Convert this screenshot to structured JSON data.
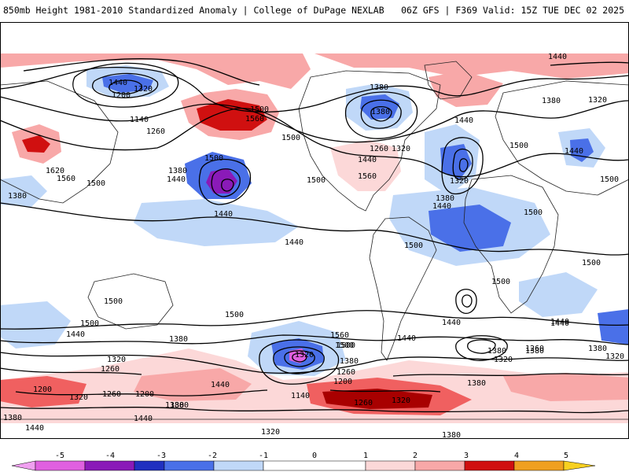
{
  "header": {
    "left": "850mb Height 1981-2010 Standardized Anomaly | College of DuPage NEXLAB",
    "right": "06Z GFS | F369 Valid: 15Z TUE DEC 02 2025"
  },
  "colors": {
    "neg5": "#e060e0",
    "neg4": "#8a1ab8",
    "neg3": "#2030c0",
    "neg2": "#4a70e8",
    "neg1": "#c0d8f8",
    "neg05": "#d8e8fc",
    "pos05": "#fcd8d8",
    "pos1": "#f8a8a8",
    "pos2": "#f06060",
    "pos3": "#d01010",
    "pos4": "#a80000",
    "pos5": "#f0a020"
  },
  "contour_labels": [
    {
      "id": "c1",
      "text": "1440"
    },
    {
      "id": "c2",
      "text": "1320"
    },
    {
      "id": "c3",
      "text": "1200"
    },
    {
      "id": "c4",
      "text": "1140"
    },
    {
      "id": "c5",
      "text": "1260"
    },
    {
      "id": "c6",
      "text": "1380"
    },
    {
      "id": "c7",
      "text": "1500"
    },
    {
      "id": "c8",
      "text": "1560"
    },
    {
      "id": "c9",
      "text": "1620"
    },
    {
      "id": "c10",
      "text": "1560"
    },
    {
      "id": "c11",
      "text": "1500"
    },
    {
      "id": "c12",
      "text": "1440"
    },
    {
      "id": "c13",
      "text": "1380"
    },
    {
      "id": "c14",
      "text": "1500"
    },
    {
      "id": "c15",
      "text": "1440"
    },
    {
      "id": "c16",
      "text": "1500"
    },
    {
      "id": "c17",
      "text": "1560"
    },
    {
      "id": "c18",
      "text": "1500"
    },
    {
      "id": "c19",
      "text": "1440"
    },
    {
      "id": "c20",
      "text": "1380"
    },
    {
      "id": "c21",
      "text": "1260"
    },
    {
      "id": "c22",
      "text": "1320"
    },
    {
      "id": "c23",
      "text": "1440"
    },
    {
      "id": "c24",
      "text": "1500"
    },
    {
      "id": "c25",
      "text": "1320"
    },
    {
      "id": "c26",
      "text": "1380"
    },
    {
      "id": "c27",
      "text": "1440"
    },
    {
      "id": "c28",
      "text": "1500"
    },
    {
      "id": "c29",
      "text": "1440"
    },
    {
      "id": "c30",
      "text": "1380"
    },
    {
      "id": "c31",
      "text": "1500"
    },
    {
      "id": "c32",
      "text": "1500"
    },
    {
      "id": "c33",
      "text": "1440"
    },
    {
      "id": "c34",
      "text": "1500"
    },
    {
      "id": "c35",
      "text": "1500"
    },
    {
      "id": "c36",
      "text": "1440"
    },
    {
      "id": "c37",
      "text": "1500"
    },
    {
      "id": "c38",
      "text": "1500"
    },
    {
      "id": "c39",
      "text": "1500"
    },
    {
      "id": "c40",
      "text": "1500"
    },
    {
      "id": "c41",
      "text": "1440"
    },
    {
      "id": "c42",
      "text": "1380"
    },
    {
      "id": "c43",
      "text": "1320"
    },
    {
      "id": "c44",
      "text": "1260"
    },
    {
      "id": "c45",
      "text": "1200"
    },
    {
      "id": "c46",
      "text": "1260"
    },
    {
      "id": "c47",
      "text": "1200"
    },
    {
      "id": "c48",
      "text": "1320"
    },
    {
      "id": "c49",
      "text": "1380"
    },
    {
      "id": "c50",
      "text": "1380"
    },
    {
      "id": "c51",
      "text": "1440"
    },
    {
      "id": "c52",
      "text": "1440"
    },
    {
      "id": "c53",
      "text": "1320"
    },
    {
      "id": "c54",
      "text": "1380"
    },
    {
      "id": "c55",
      "text": "1560"
    },
    {
      "id": "c56",
      "text": "1500"
    },
    {
      "id": "c57",
      "text": "1440"
    },
    {
      "id": "c58",
      "text": "1440"
    },
    {
      "id": "c59",
      "text": "1320"
    },
    {
      "id": "c60",
      "text": "1380"
    },
    {
      "id": "c61",
      "text": "1260"
    },
    {
      "id": "c62",
      "text": "1200"
    },
    {
      "id": "c63",
      "text": "1140"
    },
    {
      "id": "c64",
      "text": "1260"
    },
    {
      "id": "c65",
      "text": "1320"
    },
    {
      "id": "c66",
      "text": "1380"
    },
    {
      "id": "c67",
      "text": "1440"
    },
    {
      "id": "c68",
      "text": "1380"
    },
    {
      "id": "c69",
      "text": "1320"
    },
    {
      "id": "c70",
      "text": "1380"
    },
    {
      "id": "c71",
      "text": "1260"
    },
    {
      "id": "c72",
      "text": "1440"
    },
    {
      "id": "c73",
      "text": "1320"
    },
    {
      "id": "c74",
      "text": "1380"
    },
    {
      "id": "c75",
      "text": "1440"
    },
    {
      "id": "c76",
      "text": "1380"
    },
    {
      "id": "c77",
      "text": "1320"
    },
    {
      "id": "c78",
      "text": "1380"
    }
  ],
  "legend": {
    "ticks": [
      "-5",
      "-4",
      "-3",
      "-2",
      "-1",
      "0",
      "1",
      "2",
      "3",
      "4",
      "5"
    ]
  }
}
